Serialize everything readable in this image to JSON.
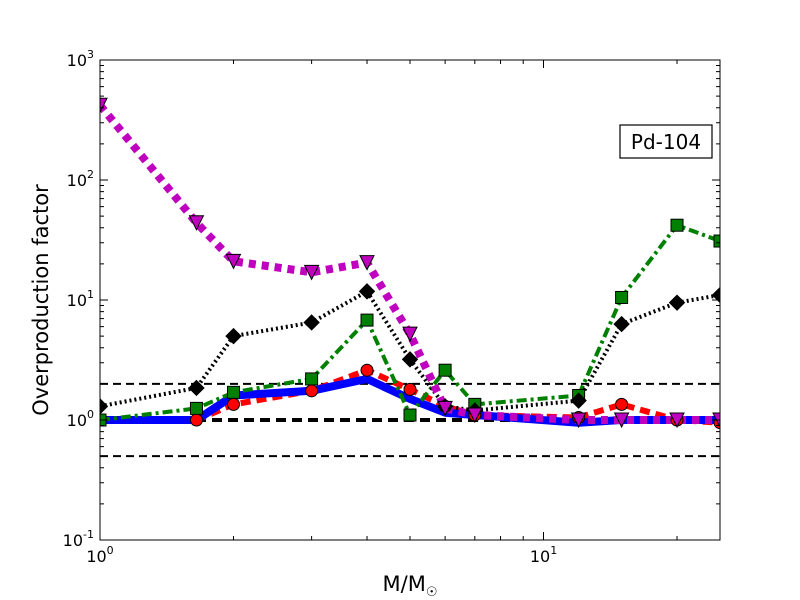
{
  "chart_data": {
    "type": "line",
    "label_box": "Pd-104",
    "xlabel": "M/M",
    "xlabel_symbol": "☉",
    "ylabel": "Overproduction factor",
    "xscale": "log",
    "yscale": "log",
    "xlim": [
      1,
      25
    ],
    "ylim": [
      0.1,
      1000
    ],
    "x_ticks": [
      {
        "value": 1,
        "base": "10",
        "exp": "0"
      },
      {
        "value": 10,
        "base": "10",
        "exp": "1"
      }
    ],
    "y_ticks": [
      {
        "value": 0.1,
        "base": "10",
        "exp": "-1"
      },
      {
        "value": 1,
        "base": "10",
        "exp": "0"
      },
      {
        "value": 10,
        "base": "10",
        "exp": "1"
      },
      {
        "value": 100,
        "base": "10",
        "exp": "2"
      },
      {
        "value": 1000,
        "base": "10",
        "exp": "3"
      }
    ],
    "reference_lines": [
      {
        "y": 2.0,
        "style": "dashed-thin"
      },
      {
        "y": 1.0,
        "style": "dashed-thick"
      },
      {
        "y": 0.5,
        "style": "dashed-thin"
      }
    ],
    "series": [
      {
        "color": "#ff0000",
        "line": "dashed",
        "marker": "circle",
        "x": [
          1,
          1.65,
          2,
          3,
          4,
          5,
          6,
          7,
          12,
          15,
          20,
          25
        ],
        "y": [
          1.0,
          1.0,
          1.35,
          1.75,
          2.6,
          1.8,
          1.3,
          1.1,
          1.05,
          1.35,
          1.0,
          0.95
        ]
      },
      {
        "color": "#0000ff",
        "line": "solid",
        "marker": "none",
        "x": [
          1,
          1.65,
          2,
          3,
          4,
          5,
          6,
          7,
          12,
          15,
          20,
          25
        ],
        "y": [
          1.0,
          1.0,
          1.6,
          1.75,
          2.2,
          1.5,
          1.15,
          1.1,
          0.95,
          1.0,
          1.0,
          1.0
        ]
      },
      {
        "color": "#008000",
        "line": "dashdot",
        "marker": "square",
        "x": [
          1,
          1.65,
          2,
          3,
          4,
          5,
          6,
          7,
          12,
          15,
          20,
          25
        ],
        "y": [
          1.0,
          1.25,
          1.7,
          2.2,
          6.8,
          1.1,
          2.6,
          1.35,
          1.6,
          10.5,
          42,
          31
        ]
      },
      {
        "color": "#000000",
        "line": "dotted",
        "marker": "diamond",
        "x": [
          1,
          1.65,
          2,
          3,
          4,
          5,
          6,
          7,
          12,
          15,
          20,
          25
        ],
        "y": [
          1.3,
          1.85,
          5.0,
          6.5,
          11.8,
          3.2,
          1.3,
          1.2,
          1.45,
          6.3,
          9.5,
          11
        ]
      },
      {
        "color": "#bf00bf",
        "line": "dotted-thick",
        "marker": "triangle-down",
        "x": [
          1,
          1.65,
          2,
          3,
          4,
          5,
          6,
          7,
          12,
          15,
          20,
          25
        ],
        "y": [
          420,
          44,
          21,
          17,
          20.5,
          5.2,
          1.25,
          1.1,
          1.0,
          1.0,
          1.0,
          1.0
        ]
      }
    ]
  }
}
